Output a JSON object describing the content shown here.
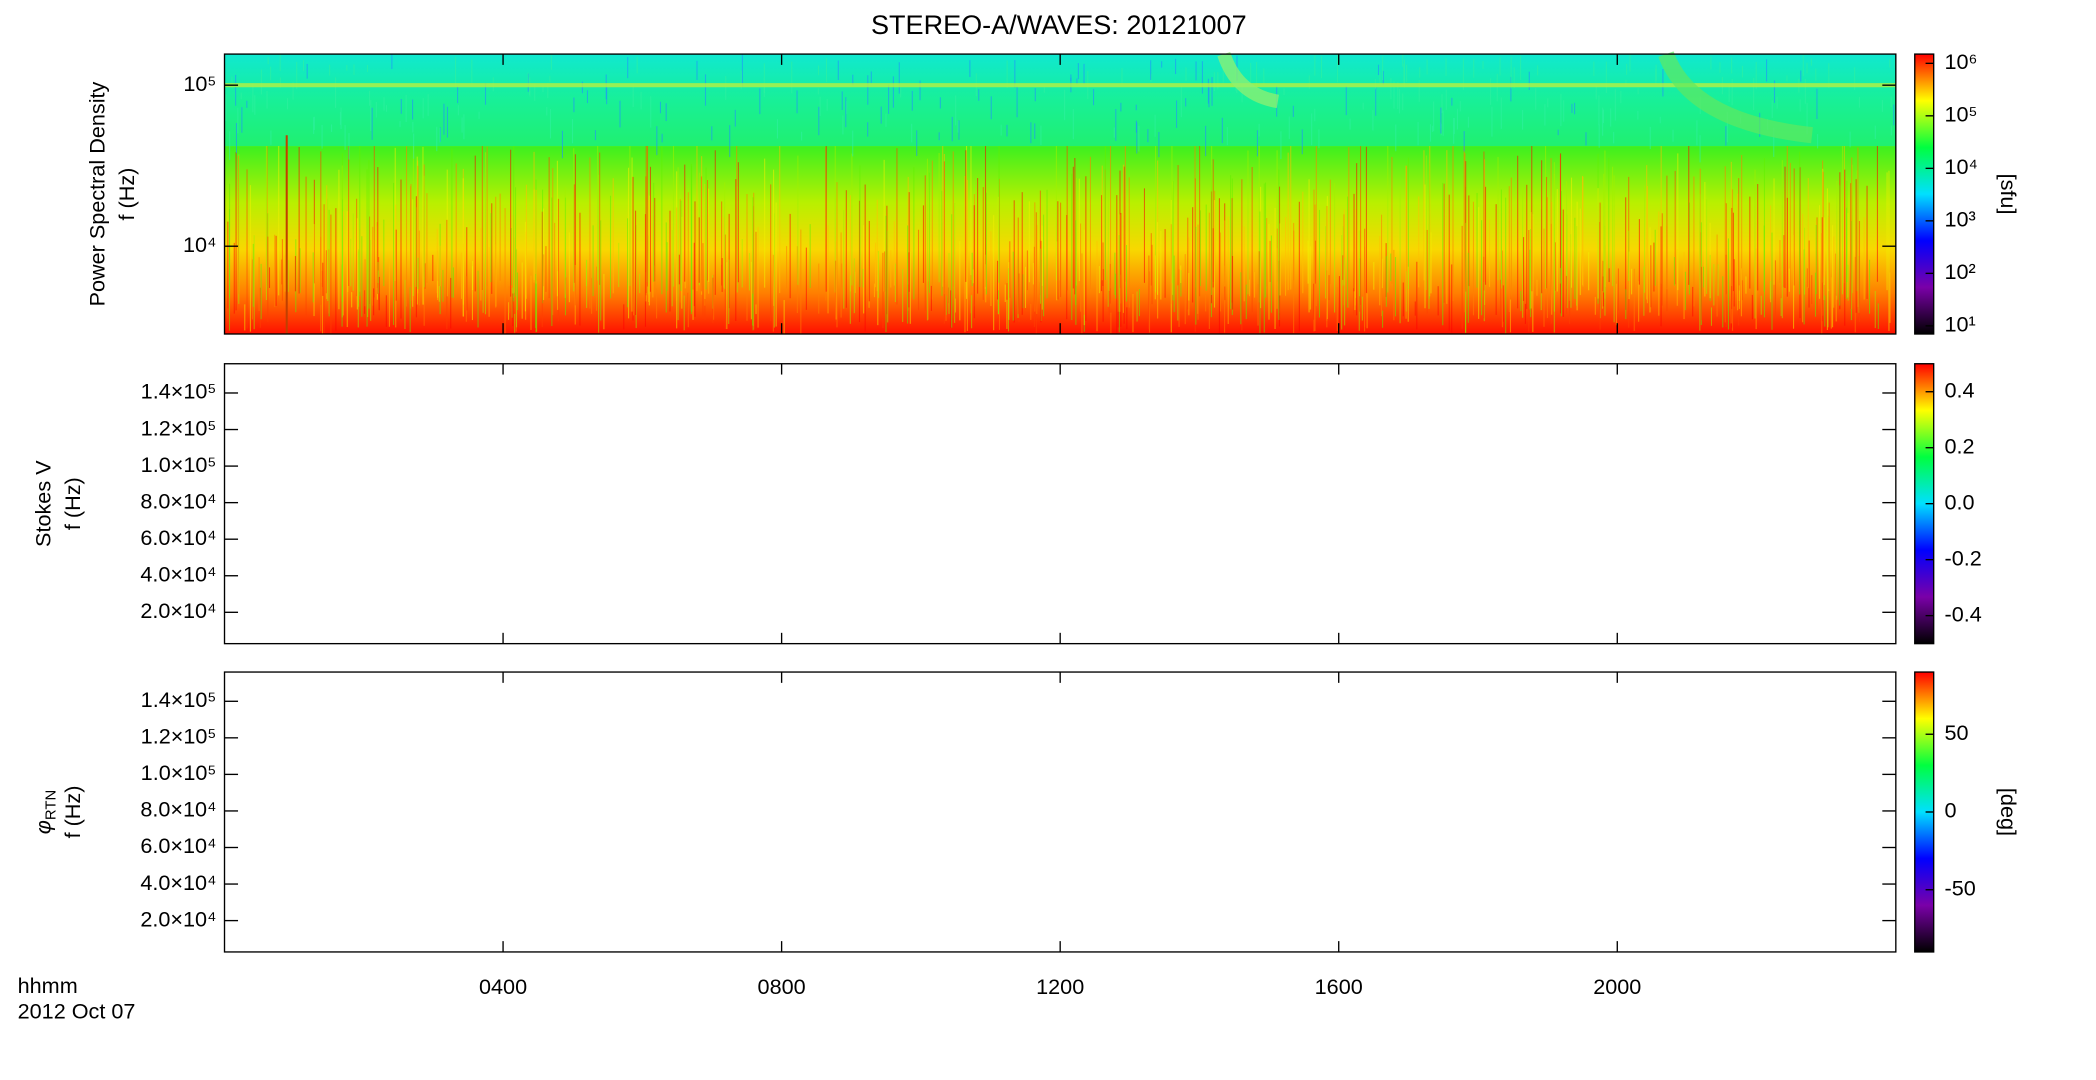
{
  "title": "STEREO-A/WAVES: 20121007",
  "x_axis": {
    "xlim": [
      0,
      24
    ],
    "xticks": [
      {
        "value": 4,
        "label": "0400"
      },
      {
        "value": 8,
        "label": "0800"
      },
      {
        "value": 12,
        "label": "1200"
      },
      {
        "value": 16,
        "label": "1600"
      },
      {
        "value": 20,
        "label": "2000"
      }
    ],
    "label_lines": [
      "hhmm",
      "2012 Oct 07"
    ]
  },
  "chart_data": [
    {
      "type": "spectrogram",
      "ylabel": [
        "Power Spectral Density",
        "f (Hz)"
      ],
      "log_y": true,
      "ylim": [
        2850,
        156000
      ],
      "yticks": [
        {
          "value": 10000,
          "label": "10⁴"
        },
        {
          "value": 100000,
          "label": "10⁵"
        }
      ],
      "colorbar": {
        "log": true,
        "lim": [
          7,
          1500000
        ],
        "label": "[sfu]",
        "colormap": [
          "#000000",
          "#7a00a8",
          "#0000ff",
          "#00e0ff",
          "#00ff40",
          "#ffff00",
          "#ff0000"
        ],
        "ticks": [
          {
            "value": 10,
            "label": "10¹"
          },
          {
            "value": 100,
            "label": "10²"
          },
          {
            "value": 1000,
            "label": "10³"
          },
          {
            "value": 10000,
            "label": "10⁴"
          },
          {
            "value": 100000,
            "label": "10⁵"
          },
          {
            "value": 1000000,
            "label": "10⁶"
          }
        ]
      }
    },
    {
      "type": "spectrogram",
      "ylabel": [
        "Stokes V",
        "f (Hz)"
      ],
      "log_y": false,
      "ylim": [
        2850,
        156000
      ],
      "yticks": [
        {
          "value": 20000,
          "label": "2.0×10⁴"
        },
        {
          "value": 40000,
          "label": "4.0×10⁴"
        },
        {
          "value": 60000,
          "label": "6.0×10⁴"
        },
        {
          "value": 80000,
          "label": "8.0×10⁴"
        },
        {
          "value": 100000,
          "label": "1.0×10⁵"
        },
        {
          "value": 120000,
          "label": "1.2×10⁵"
        },
        {
          "value": 140000,
          "label": "1.4×10⁵"
        }
      ],
      "colorbar": {
        "log": false,
        "lim": [
          -0.5,
          0.5
        ],
        "label": null,
        "colormap": [
          "#000000",
          "#7a00a8",
          "#0000ff",
          "#00e0ff",
          "#00ff40",
          "#ffff00",
          "#ff0000"
        ],
        "ticks": [
          -0.4,
          -0.2,
          {
            "value": 0,
            "label": "0.0"
          },
          0.2,
          0.4
        ]
      }
    },
    {
      "type": "spectrogram",
      "ylabel": [
        {
          "symbol": "φ",
          "subscript": "RTN"
        },
        "f (Hz)"
      ],
      "log_y": false,
      "ylim": [
        2850,
        156000
      ],
      "yticks": [
        {
          "value": 20000,
          "label": "2.0×10⁴"
        },
        {
          "value": 40000,
          "label": "4.0×10⁴"
        },
        {
          "value": 60000,
          "label": "6.0×10⁴"
        },
        {
          "value": 80000,
          "label": "8.0×10⁴"
        },
        {
          "value": 100000,
          "label": "1.0×10⁵"
        },
        {
          "value": 120000,
          "label": "1.2×10⁵"
        },
        {
          "value": 140000,
          "label": "1.4×10⁵"
        }
      ],
      "colorbar": {
        "log": false,
        "lim": [
          -90,
          90
        ],
        "label": "[deg]",
        "colormap": [
          "#000000",
          "#7a00a8",
          "#0000ff",
          "#00e0ff",
          "#00ff40",
          "#ffff00",
          "#ff0000"
        ],
        "ticks": [
          -50,
          0,
          50
        ]
      }
    }
  ]
}
